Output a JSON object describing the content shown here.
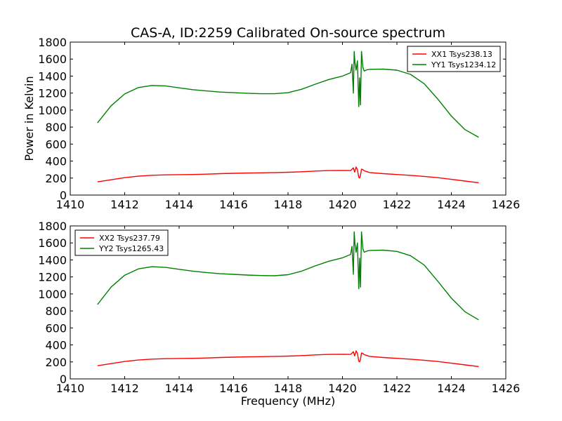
{
  "chart_data": {
    "title": "CAS-A, ID:2259 Calibrated On-source spectrum",
    "xlabel": "Frequency (MHz)",
    "ylabel": "Power in Kelvin",
    "panels": [
      {
        "type": "line",
        "xlim": [
          1410,
          1426
        ],
        "ylim": [
          0,
          1800
        ],
        "xticks": [
          1410,
          1412,
          1414,
          1416,
          1418,
          1420,
          1422,
          1424,
          1426
        ],
        "yticks": [
          0,
          200,
          400,
          600,
          800,
          1000,
          1200,
          1400,
          1600,
          1800
        ],
        "legend_position": "top-right",
        "series": [
          {
            "name": "XX1 Tsys238.13",
            "color": "#ff0000",
            "x": [
              1411.0,
              1411.5,
              1412.0,
              1412.5,
              1413.0,
              1413.5,
              1414.0,
              1414.5,
              1415.0,
              1415.5,
              1416.0,
              1416.5,
              1417.0,
              1417.5,
              1418.0,
              1418.5,
              1419.0,
              1419.5,
              1420.0,
              1420.3,
              1420.4,
              1420.45,
              1420.5,
              1420.55,
              1420.6,
              1420.63,
              1420.66,
              1420.7,
              1420.75,
              1420.8,
              1420.9,
              1421.0,
              1421.5,
              1422.0,
              1422.5,
              1423.0,
              1423.5,
              1424.0,
              1424.5,
              1425.0
            ],
            "y": [
              155,
              180,
              205,
              222,
              233,
              238,
              240,
              242,
              246,
              252,
              256,
              259,
              262,
              265,
              268,
              274,
              282,
              288,
              290,
              288,
              320,
              270,
              330,
              300,
              210,
              200,
              230,
              305,
              300,
              285,
              275,
              265,
              252,
              242,
              232,
              220,
              205,
              185,
              165,
              145
            ]
          },
          {
            "name": "YY1 Tsys1234.12",
            "color": "#008000",
            "x": [
              1411.0,
              1411.5,
              1412.0,
              1412.5,
              1413.0,
              1413.5,
              1414.0,
              1414.5,
              1415.0,
              1415.5,
              1416.0,
              1416.5,
              1417.0,
              1417.5,
              1418.0,
              1418.5,
              1419.0,
              1419.5,
              1420.0,
              1420.3,
              1420.35,
              1420.4,
              1420.43,
              1420.46,
              1420.5,
              1420.55,
              1420.6,
              1420.63,
              1420.66,
              1420.7,
              1420.75,
              1420.8,
              1420.9,
              1421.0,
              1421.5,
              1422.0,
              1422.5,
              1423.0,
              1423.5,
              1424.0,
              1424.5,
              1425.0
            ],
            "y": [
              850,
              1050,
              1190,
              1265,
              1290,
              1285,
              1262,
              1240,
              1225,
              1212,
              1205,
              1198,
              1192,
              1192,
              1205,
              1245,
              1305,
              1360,
              1400,
              1440,
              1540,
              1200,
              1690,
              1560,
              1470,
              1580,
              1040,
              1380,
              1060,
              1690,
              1500,
              1460,
              1475,
              1480,
              1482,
              1470,
              1420,
              1310,
              1130,
              930,
              770,
              680
            ]
          }
        ]
      },
      {
        "type": "line",
        "xlim": [
          1410,
          1426
        ],
        "ylim": [
          0,
          1800
        ],
        "xticks": [
          1410,
          1412,
          1414,
          1416,
          1418,
          1420,
          1422,
          1424,
          1426
        ],
        "yticks": [
          0,
          200,
          400,
          600,
          800,
          1000,
          1200,
          1400,
          1600,
          1800
        ],
        "legend_position": "top-left",
        "series": [
          {
            "name": "XX2 Tsys237.79",
            "color": "#ff0000",
            "x": [
              1411.0,
              1411.5,
              1412.0,
              1412.5,
              1413.0,
              1413.5,
              1414.0,
              1414.5,
              1415.0,
              1415.5,
              1416.0,
              1416.5,
              1417.0,
              1417.5,
              1418.0,
              1418.5,
              1419.0,
              1419.5,
              1420.0,
              1420.3,
              1420.4,
              1420.45,
              1420.5,
              1420.55,
              1420.6,
              1420.63,
              1420.66,
              1420.7,
              1420.75,
              1420.8,
              1420.9,
              1421.0,
              1421.5,
              1422.0,
              1422.5,
              1423.0,
              1423.5,
              1424.0,
              1424.5,
              1425.0
            ],
            "y": [
              155,
              180,
              205,
              222,
              233,
              238,
              240,
              242,
              246,
              252,
              256,
              259,
              262,
              265,
              268,
              274,
              282,
              288,
              290,
              288,
              320,
              270,
              330,
              300,
              210,
              200,
              230,
              305,
              300,
              285,
              275,
              265,
              252,
              242,
              232,
              220,
              205,
              185,
              165,
              145
            ]
          },
          {
            "name": "YY2 Tsys1265.43",
            "color": "#008000",
            "x": [
              1411.0,
              1411.5,
              1412.0,
              1412.5,
              1413.0,
              1413.5,
              1414.0,
              1414.5,
              1415.0,
              1415.5,
              1416.0,
              1416.5,
              1417.0,
              1417.5,
              1418.0,
              1418.5,
              1419.0,
              1419.5,
              1420.0,
              1420.3,
              1420.35,
              1420.4,
              1420.43,
              1420.46,
              1420.5,
              1420.55,
              1420.6,
              1420.63,
              1420.66,
              1420.7,
              1420.75,
              1420.8,
              1420.9,
              1421.0,
              1421.5,
              1422.0,
              1422.5,
              1423.0,
              1423.5,
              1424.0,
              1424.5,
              1425.0
            ],
            "y": [
              875,
              1080,
              1220,
              1295,
              1320,
              1312,
              1290,
              1268,
              1252,
              1238,
              1230,
              1222,
              1216,
              1214,
              1226,
              1268,
              1330,
              1385,
              1425,
              1465,
              1560,
              1230,
              1730,
              1590,
              1490,
              1600,
              1060,
              1420,
              1080,
              1730,
              1530,
              1490,
              1505,
              1512,
              1515,
              1500,
              1450,
              1340,
              1150,
              950,
              790,
              695
            ]
          }
        ]
      }
    ]
  }
}
